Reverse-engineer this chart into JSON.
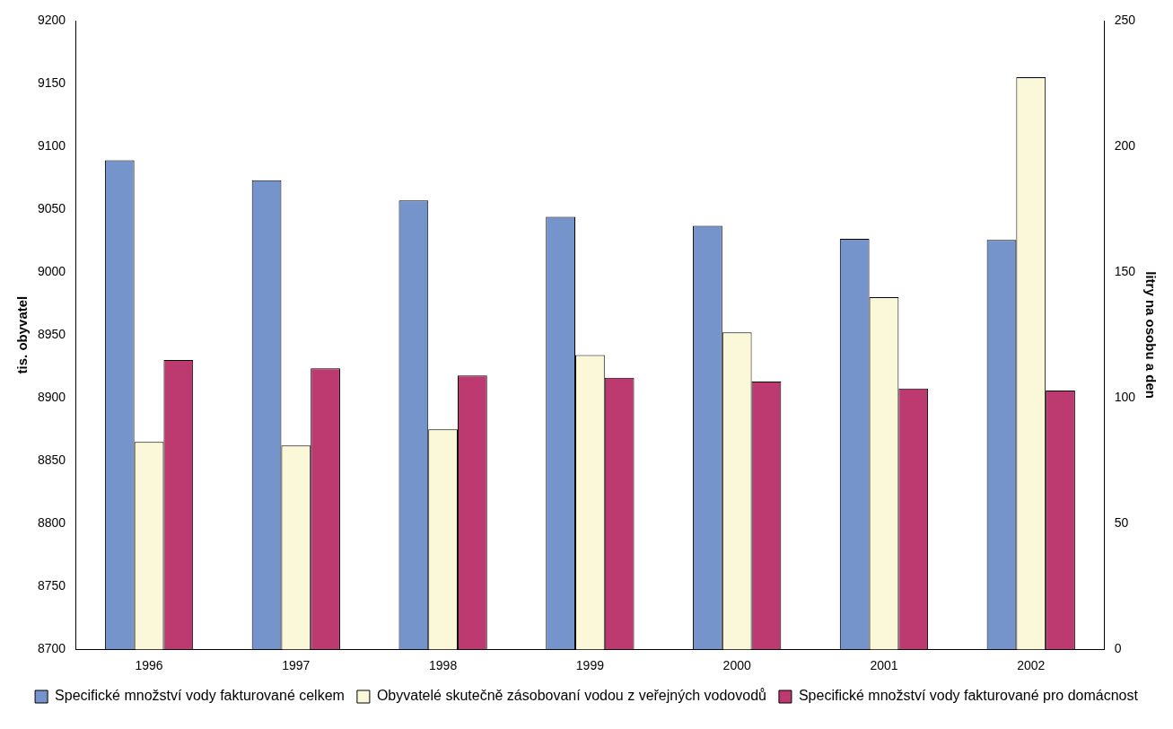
{
  "chart_data": {
    "type": "bar",
    "ylabel": "tis. obyvatel",
    "y2label": "litry na osobu a den",
    "categories": [
      "1996",
      "1997",
      "1998",
      "1999",
      "2000",
      "2001",
      "2002"
    ],
    "series": [
      {
        "name": "Specifické množství vody fakturované celkem",
        "color": "#7594cb",
        "axis": "y2",
        "values": [
          194.5,
          186.5,
          178.5,
          172,
          168.4,
          163.2,
          162.8
        ]
      },
      {
        "name": "Obyvatelé skutečně zásobovaní vodou z veřejných vodovodů",
        "color": "#fbf7d9",
        "values": [
          8865,
          8862,
          8875,
          8934,
          8952,
          8980,
          9155
        ]
      },
      {
        "name": "Specifické množství vody fakturované pro domácnost",
        "color": "#bc3a70",
        "axis": "y2",
        "values": [
          115,
          111.7,
          108.9,
          108,
          106.5,
          103.7,
          102.9
        ]
      }
    ],
    "ylim": [
      8700,
      9200
    ],
    "yticks": [
      8700,
      8750,
      8800,
      8850,
      8900,
      8950,
      9000,
      9050,
      9100,
      9150,
      9200
    ],
    "y2lim": [
      0,
      250
    ],
    "y2ticks": [
      0,
      50,
      100,
      150,
      200,
      250
    ],
    "grid": false,
    "legend": "bottom"
  }
}
